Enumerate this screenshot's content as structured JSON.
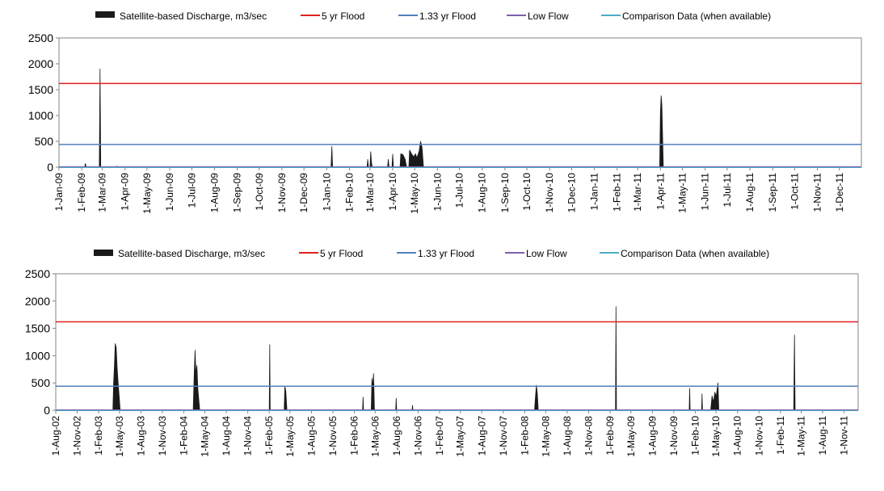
{
  "legend": {
    "discharge": "Satellite-based Discharge, m3/sec",
    "flood5": "5 yr Flood",
    "flood133": "1.33 yr Flood",
    "lowflow": "Low Flow",
    "comparison": "Comparison Data (when available)"
  },
  "colors": {
    "discharge": "#1a1a1a",
    "flood5": "#e02020",
    "flood133": "#4f81bd",
    "lowflow": "#7f5fa8",
    "comparison": "#4bacc6"
  },
  "chart_data": [
    {
      "type": "area",
      "title": "",
      "xlabel": "",
      "ylabel": "",
      "ylim": [
        0,
        2500
      ],
      "yticks": [
        0,
        500,
        1000,
        1500,
        2000,
        2500
      ],
      "xlim": [
        "2009-01-01",
        "2011-12-31"
      ],
      "xtick_labels": [
        "1-Jan-09",
        "1-Feb-09",
        "1-Mar-09",
        "1-Apr-09",
        "1-May-09",
        "1-Jun-09",
        "1-Jul-09",
        "1-Aug-09",
        "1-Sep-09",
        "1-Oct-09",
        "1-Nov-09",
        "1-Dec-09",
        "1-Jan-10",
        "1-Feb-10",
        "1-Mar-10",
        "1-Apr-10",
        "1-May-10",
        "1-Jun-10",
        "1-Jul-10",
        "1-Aug-10",
        "1-Sep-10",
        "1-Oct-10",
        "1-Nov-10",
        "1-Dec-10",
        "1-Jan-11",
        "1-Feb-11",
        "1-Mar-11",
        "1-Apr-11",
        "1-May-11",
        "1-Jun-11",
        "1-Jul-11",
        "1-Aug-11",
        "1-Sep-11",
        "1-Oct-11",
        "1-Nov-11",
        "1-Dec-11"
      ],
      "reference_lines": {
        "flood5": 1620,
        "flood133": 440,
        "lowflow": 0,
        "comparison": 0
      },
      "series": [
        {
          "name": "Satellite-based Discharge, m3/sec",
          "points": [
            [
              "2009-02-05",
              0
            ],
            [
              "2009-02-06",
              70
            ],
            [
              "2009-02-07",
              0
            ],
            [
              "2009-02-25",
              0
            ],
            [
              "2009-02-26",
              1900
            ],
            [
              "2009-02-27",
              0
            ],
            [
              "2009-03-20",
              0
            ],
            [
              "2009-03-21",
              20
            ],
            [
              "2009-03-22",
              0
            ],
            [
              "2010-01-07",
              0
            ],
            [
              "2010-01-08",
              400
            ],
            [
              "2010-01-09",
              0
            ],
            [
              "2010-02-25",
              0
            ],
            [
              "2010-02-26",
              150
            ],
            [
              "2010-02-27",
              0
            ],
            [
              "2010-03-01",
              0
            ],
            [
              "2010-03-02",
              300
            ],
            [
              "2010-03-03",
              100
            ],
            [
              "2010-03-04",
              0
            ],
            [
              "2010-03-25",
              0
            ],
            [
              "2010-03-26",
              150
            ],
            [
              "2010-03-27",
              0
            ],
            [
              "2010-03-31",
              0
            ],
            [
              "2010-04-01",
              250
            ],
            [
              "2010-04-02",
              0
            ],
            [
              "2010-04-11",
              0
            ],
            [
              "2010-04-12",
              260
            ],
            [
              "2010-04-15",
              240
            ],
            [
              "2010-04-18",
              150
            ],
            [
              "2010-04-20",
              0
            ],
            [
              "2010-04-23",
              0
            ],
            [
              "2010-04-24",
              330
            ],
            [
              "2010-04-27",
              250
            ],
            [
              "2010-04-30",
              200
            ],
            [
              "2010-05-02",
              260
            ],
            [
              "2010-05-04",
              180
            ],
            [
              "2010-05-07",
              310
            ],
            [
              "2010-05-09",
              500
            ],
            [
              "2010-05-11",
              380
            ],
            [
              "2010-05-13",
              0
            ],
            [
              "2011-03-31",
              0
            ],
            [
              "2011-04-01",
              1050
            ],
            [
              "2011-04-02",
              1380
            ],
            [
              "2011-04-03",
              1200
            ],
            [
              "2011-04-05",
              0
            ]
          ]
        }
      ]
    },
    {
      "type": "area",
      "title": "",
      "xlabel": "",
      "ylabel": "",
      "ylim": [
        0,
        2500
      ],
      "yticks": [
        0,
        500,
        1000,
        1500,
        2000,
        2500
      ],
      "xlim": [
        "2002-08-01",
        "2011-12-31"
      ],
      "xtick_labels": [
        "1-Aug-02",
        "1-Nov-02",
        "1-Feb-03",
        "1-May-03",
        "1-Aug-03",
        "1-Nov-03",
        "1-Feb-04",
        "1-May-04",
        "1-Aug-04",
        "1-Nov-04",
        "1-Feb-05",
        "1-May-05",
        "1-Aug-05",
        "1-Nov-05",
        "1-Feb-06",
        "1-May-06",
        "1-Aug-06",
        "1-Nov-06",
        "1-Feb-07",
        "1-May-07",
        "1-Aug-07",
        "1-Nov-07",
        "1-Feb-08",
        "1-May-08",
        "1-Aug-08",
        "1-Nov-08",
        "1-Feb-09",
        "1-May-09",
        "1-Aug-09",
        "1-Nov-09",
        "1-Feb-10",
        "1-May-10",
        "1-Aug-10",
        "1-Nov-10",
        "1-Feb-11",
        "1-May-11",
        "1-Aug-11",
        "1-Nov-11"
      ],
      "reference_lines": {
        "flood5": 1620,
        "flood133": 440,
        "lowflow": 0,
        "comparison": 0
      },
      "series": [
        {
          "name": "Satellite-based Discharge, m3/sec",
          "points": [
            [
              "2003-04-03",
              0
            ],
            [
              "2003-04-06",
              500
            ],
            [
              "2003-04-09",
              780
            ],
            [
              "2003-04-13",
              1220
            ],
            [
              "2003-04-17",
              1150
            ],
            [
              "2003-04-21",
              800
            ],
            [
              "2003-04-25",
              520
            ],
            [
              "2003-04-30",
              250
            ],
            [
              "2003-05-04",
              0
            ],
            [
              "2004-03-12",
              0
            ],
            [
              "2004-03-16",
              600
            ],
            [
              "2004-03-20",
              1100
            ],
            [
              "2004-03-24",
              650
            ],
            [
              "2004-03-28",
              820
            ],
            [
              "2004-04-01",
              400
            ],
            [
              "2004-04-05",
              200
            ],
            [
              "2004-04-09",
              0
            ],
            [
              "2005-02-01",
              0
            ],
            [
              "2005-02-03",
              1200
            ],
            [
              "2005-02-05",
              0
            ],
            [
              "2005-04-06",
              0
            ],
            [
              "2005-04-09",
              440
            ],
            [
              "2005-04-13",
              350
            ],
            [
              "2005-04-18",
              0
            ],
            [
              "2006-03-08",
              0
            ],
            [
              "2006-03-10",
              240
            ],
            [
              "2006-03-12",
              0
            ],
            [
              "2006-04-14",
              0
            ],
            [
              "2006-04-17",
              580
            ],
            [
              "2006-04-20",
              420
            ],
            [
              "2006-04-24",
              670
            ],
            [
              "2006-04-28",
              0
            ],
            [
              "2006-07-28",
              0
            ],
            [
              "2006-07-30",
              220
            ],
            [
              "2006-08-01",
              0
            ],
            [
              "2006-10-06",
              0
            ],
            [
              "2006-10-08",
              90
            ],
            [
              "2006-10-10",
              0
            ],
            [
              "2008-03-14",
              0
            ],
            [
              "2008-03-18",
              250
            ],
            [
              "2008-03-22",
              460
            ],
            [
              "2008-03-26",
              300
            ],
            [
              "2008-03-30",
              0
            ],
            [
              "2009-02-24",
              0
            ],
            [
              "2009-02-26",
              1900
            ],
            [
              "2009-02-28",
              0
            ],
            [
              "2010-01-06",
              0
            ],
            [
              "2010-01-08",
              400
            ],
            [
              "2010-01-10",
              0
            ],
            [
              "2010-02-28",
              0
            ],
            [
              "2010-03-02",
              300
            ],
            [
              "2010-03-04",
              0
            ],
            [
              "2010-04-08",
              0
            ],
            [
              "2010-04-14",
              260
            ],
            [
              "2010-04-20",
              150
            ],
            [
              "2010-04-26",
              330
            ],
            [
              "2010-05-02",
              250
            ],
            [
              "2010-05-09",
              500
            ],
            [
              "2010-05-13",
              0
            ],
            [
              "2011-03-30",
              0
            ],
            [
              "2011-04-02",
              1380
            ],
            [
              "2011-04-05",
              0
            ]
          ]
        }
      ]
    }
  ]
}
